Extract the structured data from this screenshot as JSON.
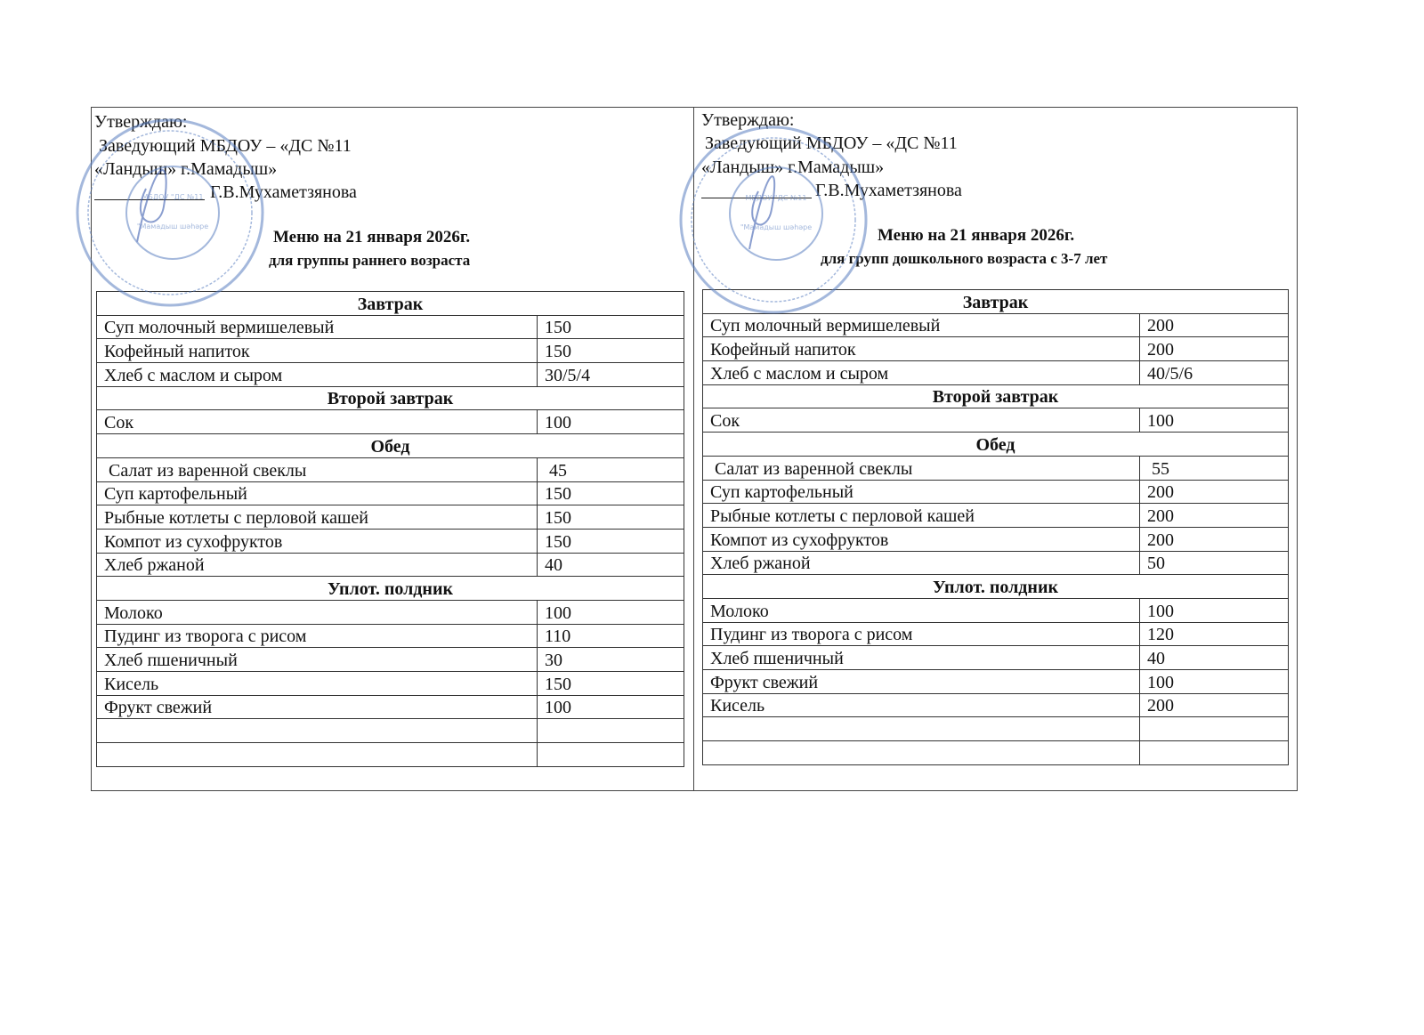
{
  "left": {
    "approve": "Утверждаю:",
    "head_line": "Заведующий МБДОУ – «ДС №11",
    "org_line": "«Ландыш» г.Мамадыш»",
    "signer": "Г.В.Мухаметзянова",
    "title": "Меню на 21 января 2026г.",
    "subtitle": "для группы раннего возраста",
    "rows": [
      {
        "section": "Завтрак"
      },
      {
        "dish": "Суп молочный вермишелевый",
        "amount": "150"
      },
      {
        "dish": "Кофейный напиток",
        "amount": "150"
      },
      {
        "dish": "Хлеб с маслом и сыром",
        "amount": "30/5/4"
      },
      {
        "section": "Второй завтрак"
      },
      {
        "dish": "Сок",
        "amount": "100"
      },
      {
        "section": "Обед"
      },
      {
        "dish": " Салат из варенной свеклы",
        "amount": " 45"
      },
      {
        "dish": "Суп картофельный",
        "amount": "150"
      },
      {
        "dish": "Рыбные котлеты с перловой кашей",
        "amount": "150"
      },
      {
        "dish": "Компот из сухофруктов",
        "amount": "150"
      },
      {
        "dish": "Хлеб ржаной",
        "amount": "40"
      },
      {
        "section": "Уплот. полдник"
      },
      {
        "dish": "Молоко",
        "amount": "100"
      },
      {
        "dish": "Пудинг из творога с рисом",
        "amount": "110"
      },
      {
        "dish": "Хлеб пшеничный",
        "amount": "30"
      },
      {
        "dish": "Кисель",
        "amount": "150"
      },
      {
        "dish": "Фрукт свежий",
        "amount": "100"
      },
      {
        "dish": "",
        "amount": ""
      },
      {
        "dish": "",
        "amount": ""
      }
    ]
  },
  "right": {
    "approve": "Утверждаю:",
    "head_line": "Заведующий МБДОУ – «ДС №11",
    "org_line": "«Ландыш» г.Мамадыш»",
    "signer": "Г.В.Мухаметзянова",
    "title": "Меню на 21 января 2026г.",
    "subtitle": "для групп дошкольного возраста с 3-7 лет",
    "rows": [
      {
        "section": "Завтрак"
      },
      {
        "dish": "Суп молочный вермишелевый",
        "amount": "200"
      },
      {
        "dish": "Кофейный напиток",
        "amount": "200"
      },
      {
        "dish": "Хлеб с маслом и сыром",
        "amount": "40/5/6"
      },
      {
        "section": "Второй завтрак"
      },
      {
        "dish": "Сок",
        "amount": "100"
      },
      {
        "section": "Обед"
      },
      {
        "dish": " Салат из варенной свеклы",
        "amount": " 55"
      },
      {
        "dish": "Суп картофельный",
        "amount": "200"
      },
      {
        "dish": "Рыбные котлеты с перловой кашей",
        "amount": "200"
      },
      {
        "dish": "Компот из сухофруктов",
        "amount": "200"
      },
      {
        "dish": "Хлеб ржаной",
        "amount": "50"
      },
      {
        "section": "Уплот. полдник"
      },
      {
        "dish": "Молоко",
        "amount": "100"
      },
      {
        "dish": "Пудинг из творога с рисом",
        "amount": "120"
      },
      {
        "dish": "Хлеб пшеничный",
        "amount": "40"
      },
      {
        "dish": "Фрукт свежий",
        "amount": "100"
      },
      {
        "dish": "Кисель",
        "amount": "200"
      },
      {
        "dish": "",
        "amount": ""
      },
      {
        "dish": "",
        "amount": ""
      }
    ]
  },
  "stamp": {
    "inner_top": "МБДОУ \"ДС №11 \"Ландыш\" г.Мамадыш\"",
    "inner_bottom": "МБДБУ \"Мамадыш шәһәре 11 нче \"Ландыш\" ББ\"",
    "color": "#5a7fc0"
  }
}
